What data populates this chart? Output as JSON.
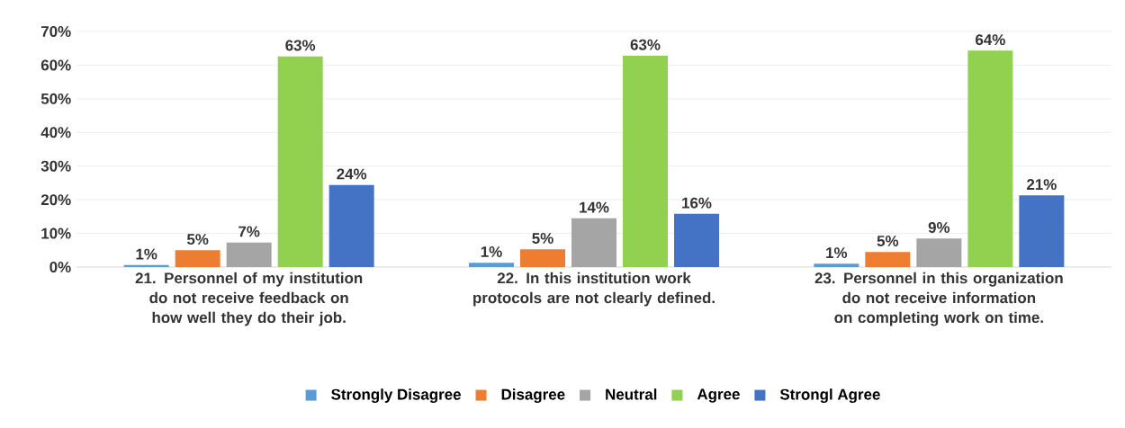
{
  "chart_data": {
    "type": "bar",
    "categories": [
      "21. Personnel of my institution do not receive feedback on how well they do their job.",
      "22. In this institution work protocols are not clearly defined.",
      "23. Personnel in this organization do not receive information on completing work on time."
    ],
    "series": [
      {
        "name": "Strongly Disagree",
        "color": "#5b9bd5",
        "values": [
          0.6,
          1.3,
          1.0
        ],
        "value_labels": [
          "1%",
          "1%",
          "1%"
        ]
      },
      {
        "name": "Disagree",
        "color": "#ed7d31",
        "values": [
          5.0,
          5.3,
          4.5
        ],
        "value_labels": [
          "5%",
          "5%",
          "5%"
        ]
      },
      {
        "name": "Neutral",
        "color": "#a5a5a5",
        "values": [
          7.3,
          14.5,
          8.5
        ],
        "value_labels": [
          "7%",
          "14%",
          "9%"
        ]
      },
      {
        "name": "Agree",
        "color": "#92d050",
        "values": [
          62.6,
          62.8,
          64.3
        ],
        "value_labels": [
          "63%",
          "63%",
          "64%"
        ]
      },
      {
        "name": "Strongl Agree",
        "color": "#4472c4",
        "values": [
          24.4,
          15.8,
          21.3
        ],
        "value_labels": [
          "24%",
          "16%",
          "21%"
        ]
      }
    ],
    "ylim": [
      0,
      70
    ],
    "yticks": [
      {
        "value": 0,
        "label": "0%"
      },
      {
        "value": 10,
        "label": "10%"
      },
      {
        "value": 20,
        "label": "20%"
      },
      {
        "value": 30,
        "label": "30%"
      },
      {
        "value": 40,
        "label": "40%"
      },
      {
        "value": 50,
        "label": "50%"
      },
      {
        "value": 60,
        "label": "60%"
      },
      {
        "value": 70,
        "label": "70%"
      }
    ],
    "grid": "y",
    "legend": "bottom"
  }
}
